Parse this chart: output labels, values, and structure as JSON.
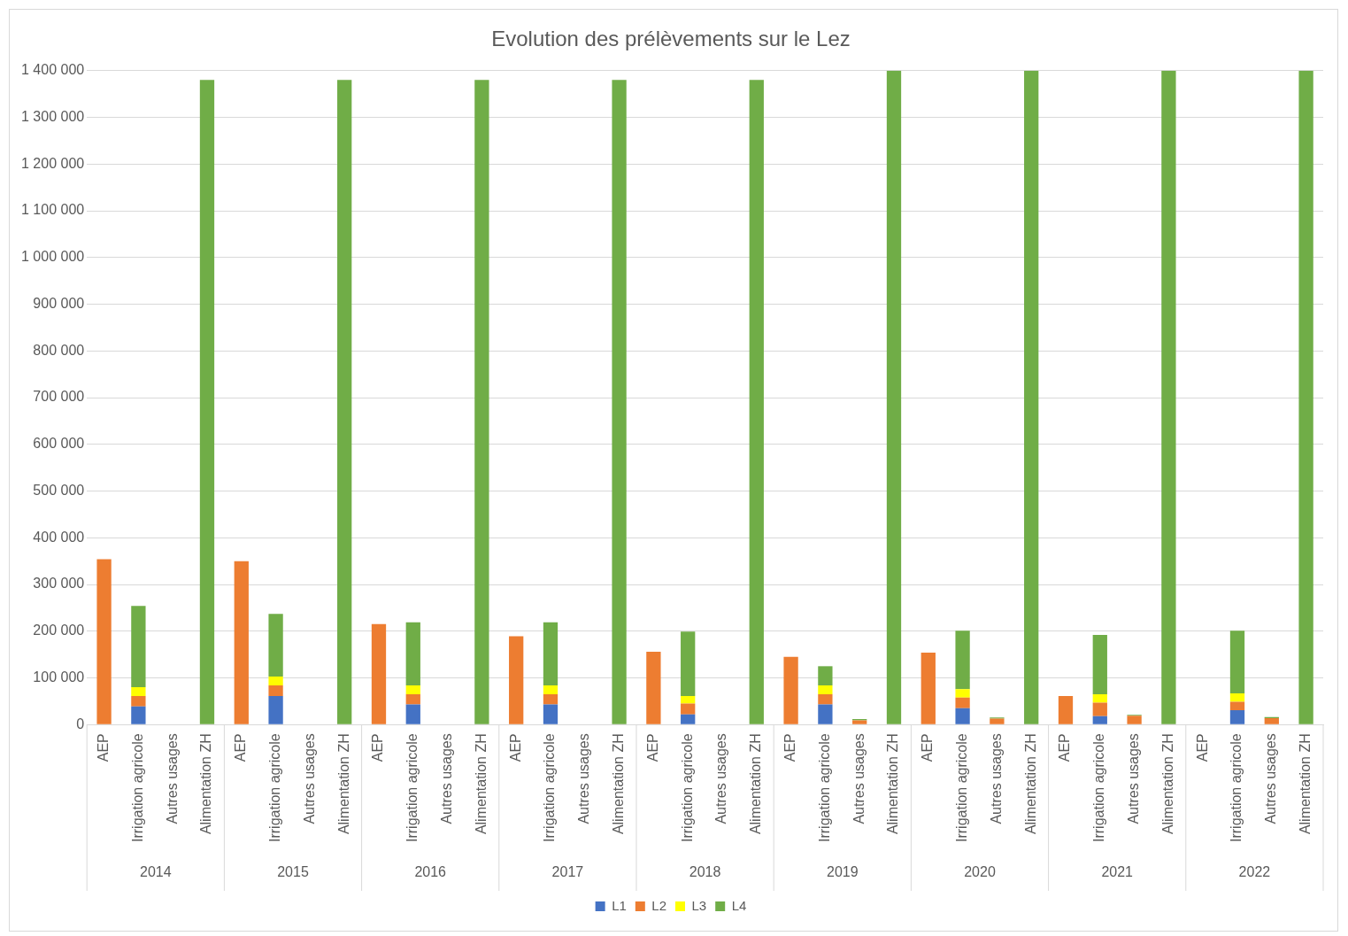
{
  "chart_data": {
    "type": "bar",
    "title": "Evolution des prélèvements sur le Lez",
    "stacked": true,
    "legend": "bottom",
    "grid": "y",
    "categories": [
      "AEP",
      "Irrigation agricole",
      "Autres usages",
      "Alimentation ZH",
      "AEP",
      "Irrigation agricole",
      "Autres usages",
      "Alimentation ZH",
      "AEP",
      "Irrigation agricole",
      "Autres usages",
      "Alimentation ZH",
      "AEP",
      "Irrigation agricole",
      "Autres usages",
      "Alimentation ZH",
      "AEP",
      "Irrigation agricole",
      "Autres usages",
      "Alimentation ZH",
      "AEP",
      "Irrigation agricole",
      "Autres usages",
      "Alimentation ZH",
      "AEP",
      "Irrigation agricole",
      "Autres usages",
      "Alimentation ZH",
      "AEP",
      "Irrigation agricole",
      "Autres usages",
      "Alimentation ZH",
      "AEP",
      "Irrigation agricole",
      "Autres usages",
      "Alimentation ZH"
    ],
    "annotations": [
      "2014",
      "2015",
      "2016",
      "2017",
      "2018",
      "2019",
      "2020",
      "2021",
      "2022"
    ],
    "series": [
      {
        "name": "L1",
        "color": "#4472c4",
        "values": [
          null,
          39000,
          null,
          null,
          null,
          61000,
          null,
          null,
          null,
          43000,
          null,
          null,
          null,
          43000,
          null,
          null,
          null,
          22000,
          null,
          null,
          null,
          43000,
          null,
          null,
          null,
          35000,
          null,
          null,
          null,
          18000,
          null,
          null,
          null,
          31000,
          null,
          null
        ]
      },
      {
        "name": "L2",
        "color": "#ed7d31",
        "values": [
          354000,
          22000,
          null,
          null,
          350000,
          23000,
          null,
          null,
          215000,
          22000,
          null,
          null,
          189000,
          22000,
          null,
          null,
          156000,
          23000,
          null,
          null,
          145000,
          22000,
          9000,
          null,
          154000,
          23000,
          13000,
          null,
          61000,
          29000,
          19000,
          null,
          null,
          18000,
          14000,
          null
        ]
      },
      {
        "name": "L3",
        "color": "#ffff00",
        "values": [
          null,
          19000,
          null,
          null,
          null,
          19000,
          null,
          null,
          null,
          19000,
          null,
          null,
          null,
          19000,
          null,
          null,
          null,
          16000,
          null,
          null,
          null,
          19000,
          null,
          null,
          null,
          18000,
          null,
          null,
          null,
          18000,
          null,
          null,
          null,
          18000,
          null,
          null
        ]
      },
      {
        "name": "L4",
        "color": "#70ad47",
        "values": [
          null,
          174000,
          null,
          1380000,
          null,
          134000,
          null,
          1380000,
          null,
          135000,
          null,
          1380000,
          null,
          135000,
          null,
          1380000,
          null,
          138000,
          null,
          1380000,
          null,
          41000,
          3000,
          1400000,
          null,
          125000,
          2000,
          1400000,
          null,
          127000,
          2000,
          1400000,
          null,
          134000,
          2000,
          1400000
        ]
      }
    ],
    "ylim": [
      0,
      1400000
    ],
    "yticks": [
      0,
      {
        "value": 100000,
        "label": "100 000"
      },
      {
        "value": 200000,
        "label": "200 000"
      },
      {
        "value": 300000,
        "label": "300 000"
      },
      {
        "value": 400000,
        "label": "400 000"
      },
      {
        "value": 500000,
        "label": "500 000"
      },
      {
        "value": 600000,
        "label": "600 000"
      },
      {
        "value": 700000,
        "label": "700 000"
      },
      {
        "value": 800000,
        "label": "800 000"
      },
      {
        "value": 900000,
        "label": "900 000"
      },
      {
        "value": 1000000,
        "label": "1 000 000"
      },
      {
        "value": 1100000,
        "label": "1 100 000"
      },
      {
        "value": 1200000,
        "label": "1 200 000"
      },
      {
        "value": 1300000,
        "label": "1 300 000"
      },
      {
        "value": 1400000,
        "label": "1 400 000"
      }
    ]
  }
}
